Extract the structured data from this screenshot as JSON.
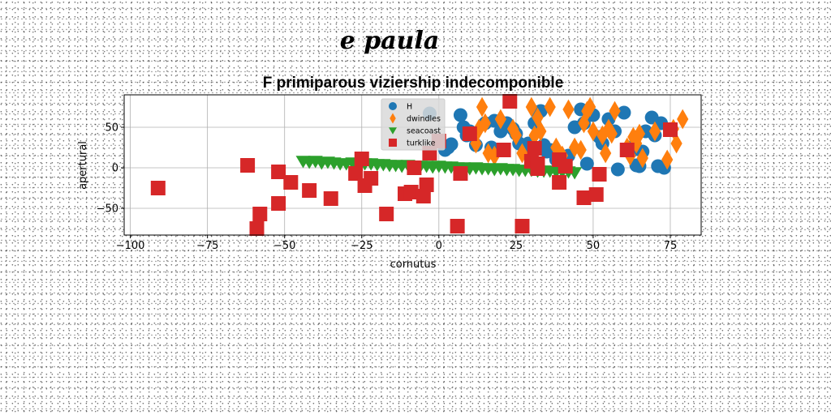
{
  "signature": "e paula",
  "chart_data": {
    "type": "scatter",
    "title": "F primiparous viziership indecomponible",
    "xlabel": "cornutus",
    "ylabel": "apertural",
    "xlim": [
      -102,
      85
    ],
    "ylim": [
      -83,
      90
    ],
    "xticks": [
      -100,
      -75,
      -50,
      -25,
      0,
      25,
      50,
      75
    ],
    "yticks": [
      -50,
      0,
      50
    ],
    "grid": true,
    "legend_position": "upper-center",
    "series": [
      {
        "name": "H",
        "marker": "circle",
        "color": "#1f77b4",
        "points": [
          [
            -3,
            67
          ],
          [
            2,
            22
          ],
          [
            3,
            25
          ],
          [
            4,
            29
          ],
          [
            7,
            65
          ],
          [
            8,
            50
          ],
          [
            9,
            40
          ],
          [
            10,
            45
          ],
          [
            12,
            28
          ],
          [
            15,
            55
          ],
          [
            17,
            25
          ],
          [
            18,
            58
          ],
          [
            20,
            45
          ],
          [
            22,
            55
          ],
          [
            24,
            48
          ],
          [
            25,
            42
          ],
          [
            26,
            30
          ],
          [
            28,
            22
          ],
          [
            29,
            30
          ],
          [
            30,
            25
          ],
          [
            31,
            55
          ],
          [
            32,
            68
          ],
          [
            33,
            70
          ],
          [
            34,
            28
          ],
          [
            35,
            20
          ],
          [
            36,
            22
          ],
          [
            38,
            10
          ],
          [
            40,
            8
          ],
          [
            42,
            15
          ],
          [
            44,
            50
          ],
          [
            46,
            72
          ],
          [
            47,
            55
          ],
          [
            48,
            5
          ],
          [
            50,
            65
          ],
          [
            52,
            38
          ],
          [
            53,
            30
          ],
          [
            55,
            60
          ],
          [
            57,
            45
          ],
          [
            58,
            -2
          ],
          [
            60,
            68
          ],
          [
            62,
            25
          ],
          [
            63,
            22
          ],
          [
            64,
            3
          ],
          [
            65,
            2
          ],
          [
            66,
            20
          ],
          [
            67,
            45
          ],
          [
            69,
            62
          ],
          [
            70,
            40
          ],
          [
            71,
            2
          ],
          [
            72,
            55
          ],
          [
            73,
            0
          ]
        ]
      },
      {
        "name": "dwindles",
        "marker": "diamond",
        "color": "#ff7f0e",
        "points": [
          [
            12,
            30
          ],
          [
            13,
            48
          ],
          [
            14,
            75
          ],
          [
            15,
            55
          ],
          [
            16,
            18
          ],
          [
            18,
            15
          ],
          [
            20,
            60
          ],
          [
            24,
            48
          ],
          [
            25,
            40
          ],
          [
            27,
            18
          ],
          [
            30,
            75
          ],
          [
            31,
            40
          ],
          [
            32,
            62
          ],
          [
            33,
            45
          ],
          [
            36,
            75
          ],
          [
            38,
            25
          ],
          [
            40,
            15
          ],
          [
            42,
            72
          ],
          [
            44,
            25
          ],
          [
            46,
            22
          ],
          [
            47,
            55
          ],
          [
            48,
            70
          ],
          [
            49,
            75
          ],
          [
            50,
            45
          ],
          [
            53,
            40
          ],
          [
            54,
            18
          ],
          [
            55,
            48
          ],
          [
            56,
            42
          ],
          [
            57,
            70
          ],
          [
            61,
            25
          ],
          [
            62,
            15
          ],
          [
            63,
            38
          ],
          [
            64,
            30
          ],
          [
            65,
            42
          ],
          [
            66,
            12
          ],
          [
            70,
            45
          ],
          [
            74,
            10
          ],
          [
            76,
            48
          ],
          [
            77,
            30
          ],
          [
            79,
            60
          ]
        ]
      },
      {
        "name": "seacoast",
        "marker": "triangle-down",
        "color": "#2ca02c",
        "points": [
          [
            -44,
            8
          ],
          [
            -42,
            7
          ],
          [
            -40,
            8
          ],
          [
            -38,
            6
          ],
          [
            -36,
            7
          ],
          [
            -34,
            6
          ],
          [
            -32,
            5
          ],
          [
            -30,
            5
          ],
          [
            -28,
            6
          ],
          [
            -26,
            4
          ],
          [
            -24,
            5
          ],
          [
            -22,
            5
          ],
          [
            -20,
            4
          ],
          [
            -18,
            4
          ],
          [
            -16,
            3
          ],
          [
            -14,
            3
          ],
          [
            -12,
            2
          ],
          [
            -10,
            3
          ],
          [
            -8,
            2
          ],
          [
            -6,
            2
          ],
          [
            -4,
            2
          ],
          [
            -2,
            1
          ],
          [
            0,
            2
          ],
          [
            2,
            1
          ],
          [
            4,
            1
          ],
          [
            6,
            0
          ],
          [
            8,
            0
          ],
          [
            10,
            -1
          ],
          [
            12,
            0
          ],
          [
            14,
            -1
          ],
          [
            16,
            -1
          ],
          [
            18,
            -2
          ],
          [
            20,
            -1
          ],
          [
            22,
            -2
          ],
          [
            24,
            -2
          ],
          [
            26,
            -3
          ],
          [
            28,
            -3
          ],
          [
            30,
            -3
          ],
          [
            32,
            -4
          ],
          [
            34,
            -4
          ],
          [
            36,
            -4
          ],
          [
            38,
            -5
          ],
          [
            40,
            -5
          ],
          [
            42,
            -5
          ],
          [
            44,
            -6
          ]
        ]
      },
      {
        "name": "turklike",
        "marker": "square",
        "color": "#d62728",
        "points": [
          [
            -91,
            -25
          ],
          [
            -62,
            3
          ],
          [
            -59,
            -75
          ],
          [
            -58,
            -57
          ],
          [
            -52,
            -5
          ],
          [
            -52,
            -44
          ],
          [
            -48,
            -18
          ],
          [
            -42,
            -28
          ],
          [
            -35,
            -38
          ],
          [
            -27,
            -7
          ],
          [
            -25,
            11
          ],
          [
            -24,
            -22
          ],
          [
            -22,
            -13
          ],
          [
            -17,
            -57
          ],
          [
            -11,
            -32
          ],
          [
            -9,
            -30
          ],
          [
            -8,
            0
          ],
          [
            -5,
            -35
          ],
          [
            -4,
            -21
          ],
          [
            -3,
            18
          ],
          [
            0,
            33
          ],
          [
            6,
            -72
          ],
          [
            7,
            -7
          ],
          [
            10,
            42
          ],
          [
            21,
            22
          ],
          [
            23,
            82
          ],
          [
            27,
            -72
          ],
          [
            30,
            8
          ],
          [
            31,
            24
          ],
          [
            32,
            -1
          ],
          [
            32,
            5
          ],
          [
            39,
            10
          ],
          [
            39,
            -18
          ],
          [
            41,
            2
          ],
          [
            47,
            -37
          ],
          [
            51,
            -33
          ],
          [
            52,
            -8
          ],
          [
            61,
            22
          ],
          [
            75,
            47
          ]
        ]
      }
    ]
  }
}
